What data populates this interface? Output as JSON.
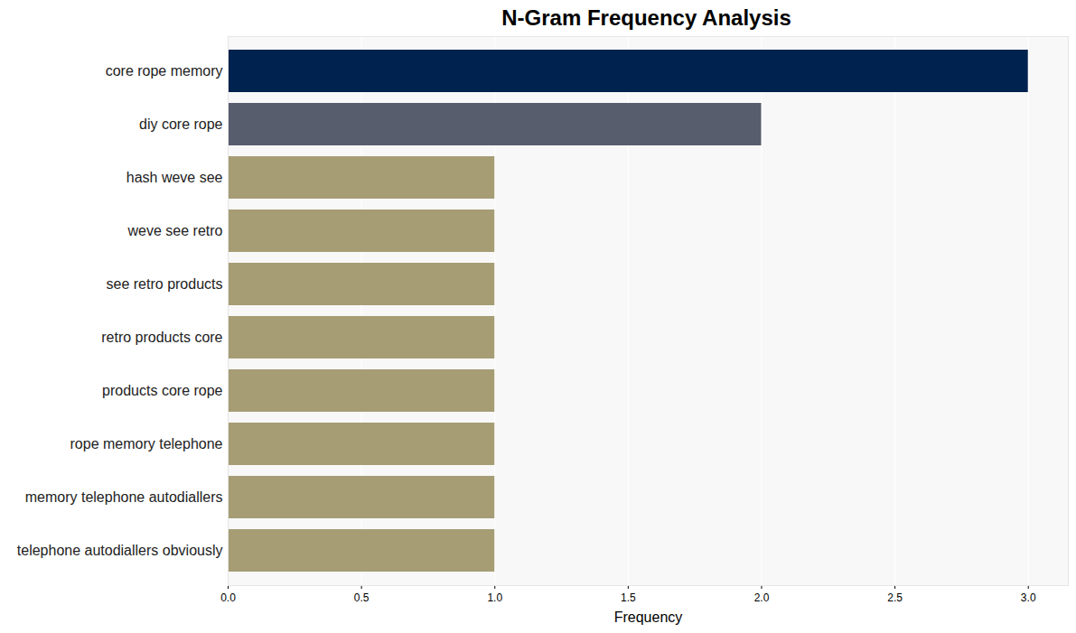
{
  "chart_data": {
    "type": "bar",
    "orientation": "horizontal",
    "title": "N-Gram Frequency Analysis",
    "x_label": "Frequency",
    "categories": [
      "core rope memory",
      "diy core rope",
      "hash weve see",
      "weve see retro",
      "see retro products",
      "retro products core",
      "products core rope",
      "rope memory telephone",
      "memory telephone autodiallers",
      "telephone autodiallers obviously"
    ],
    "values": [
      3,
      2,
      1,
      1,
      1,
      1,
      1,
      1,
      1,
      1
    ],
    "colors": [
      "#00224e",
      "#575d6d",
      "#a69d75",
      "#a69d75",
      "#a69d75",
      "#a69d75",
      "#a69d75",
      "#a69d75",
      "#a69d75",
      "#a69d75"
    ],
    "xlim": [
      0,
      3.15
    ],
    "xticks": [
      {
        "value": 0,
        "label": "0.0"
      },
      0.5,
      {
        "value": 1,
        "label": "1.0"
      },
      1.5,
      {
        "value": 2,
        "label": "2.0"
      },
      2.5,
      {
        "value": 3,
        "label": "3.0"
      }
    ],
    "grid": true
  }
}
